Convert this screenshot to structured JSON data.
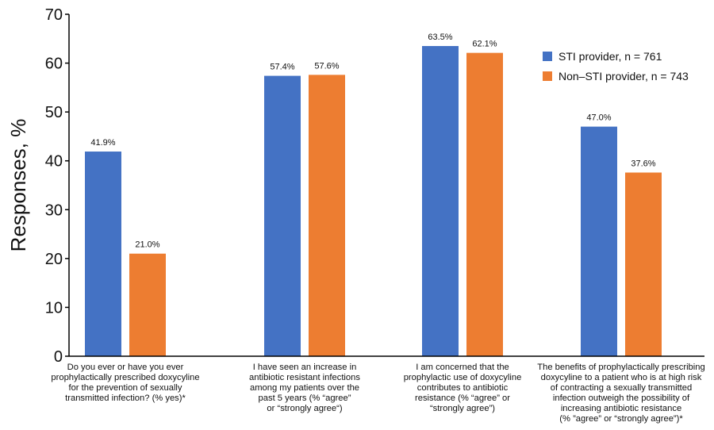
{
  "chart_data": {
    "type": "bar",
    "title": "",
    "xlabel": "",
    "ylabel": "Responses, %",
    "ylim": [
      0,
      70
    ],
    "yticks": [
      0,
      10,
      20,
      30,
      40,
      50,
      60,
      70
    ],
    "grid": false,
    "legend_position": "top-right",
    "categories": [
      "Do you ever or have you ever\nprophylactically prescribed doxycyline\nfor the prevention of sexually\ntransmitted infection? (% yes)*",
      "I have seen an increase in\nantibiotic resistant infections\namong my patients over the\npast 5 years (% “agree”\nor “strongly agree“)",
      "I am concerned that the\nprophylactic use of doxycyline\ncontributes to antibiotic\nresistance (% “agree” or\n“strongly agree”)",
      "The benefits of prophylactically prescribing\ndoxycyline to a patient who is at high risk\nof contracting a sexually transmitted\ninfection outweigh the possibility of\nincreasing antibiotic resistance\n(% ”agree” or “strongly agree”)*"
    ],
    "series": [
      {
        "name": "STI provider, n = 761",
        "color": "#4472C4",
        "values": [
          41.9,
          57.4,
          63.5,
          47.0
        ],
        "labels": [
          "41.9%",
          "57.4%",
          "63.5%",
          "47.0%"
        ]
      },
      {
        "name": "Non–STI provider, n = 743",
        "color": "#ED7D31",
        "values": [
          21.0,
          57.6,
          62.1,
          37.6
        ],
        "labels": [
          "21.0%",
          "57.6%",
          "62.1%",
          "37.6%"
        ]
      }
    ]
  }
}
